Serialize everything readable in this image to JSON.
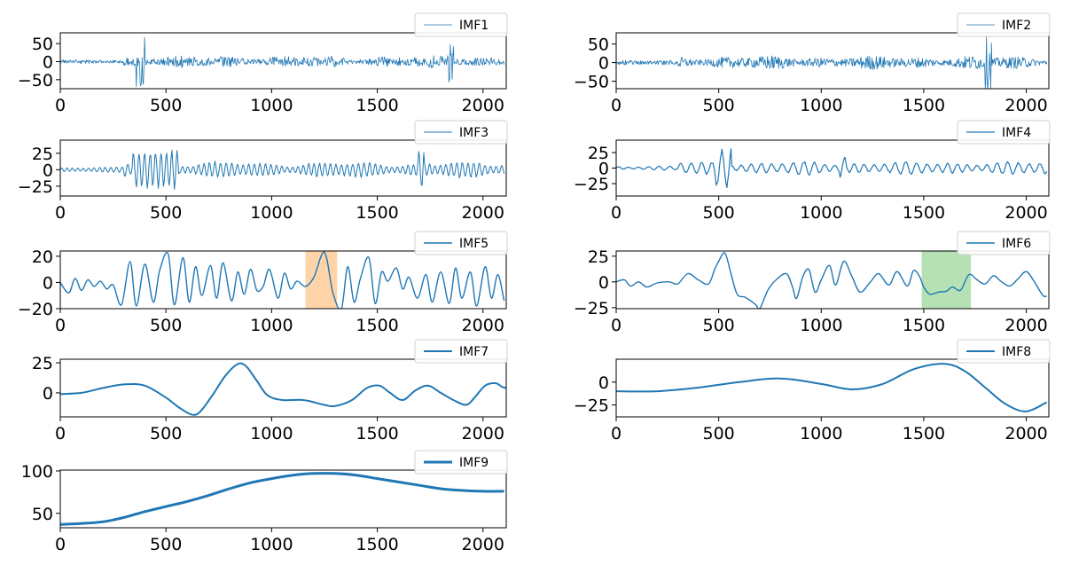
{
  "figure": {
    "line_color": "#1f77b4",
    "highlight_colors": {
      "orange": "#ffcc99",
      "green": "#a8dca8"
    }
  },
  "chart_data": [
    {
      "type": "line",
      "panel": "IMF1",
      "legend_label": "IMF1",
      "signal": "noise",
      "amplitude": 18,
      "bursts": [
        [
          360,
          400,
          70
        ],
        [
          1830,
          1860,
          70
        ]
      ],
      "xlim": [
        0,
        2110
      ],
      "x_ticks": [
        0,
        500,
        1000,
        1500,
        2000
      ],
      "ylim": [
        -75,
        80
      ],
      "y_ticks": [
        50,
        0,
        -50
      ],
      "grid": false,
      "legend_position": "top-right"
    },
    {
      "type": "line",
      "panel": "IMF2",
      "legend_label": "IMF2",
      "signal": "noise",
      "amplitude": 20,
      "bursts": [
        [
          1800,
          1830,
          70
        ]
      ],
      "xlim": [
        0,
        2110
      ],
      "x_ticks": [
        0,
        500,
        1000,
        1500,
        2000
      ],
      "ylim": [
        -70,
        80
      ],
      "y_ticks": [
        50,
        0,
        -50
      ],
      "grid": false,
      "legend_position": "top-right"
    },
    {
      "type": "line",
      "panel": "IMF3",
      "legend_label": "IMF3",
      "signal": "oscillation",
      "period": 26,
      "amplitude": 14,
      "bursts": [
        [
          340,
          560,
          30
        ],
        [
          1690,
          1720,
          32
        ]
      ],
      "xlim": [
        0,
        2110
      ],
      "x_ticks": [
        0,
        500,
        1000,
        1500,
        2000
      ],
      "ylim": [
        -40,
        45
      ],
      "y_ticks": [
        25,
        0,
        -25
      ],
      "grid": false,
      "legend_position": "top-right"
    },
    {
      "type": "line",
      "panel": "IMF4",
      "legend_label": "IMF4",
      "signal": "oscillation",
      "period": 50,
      "amplitude": 12,
      "bursts": [
        [
          480,
          560,
          34
        ],
        [
          1090,
          1120,
          20
        ]
      ],
      "xlim": [
        0,
        2110
      ],
      "x_ticks": [
        0,
        500,
        1000,
        1500,
        2000
      ],
      "ylim": [
        -45,
        45
      ],
      "y_ticks": [
        25,
        0,
        -25
      ],
      "grid": false,
      "legend_position": "top-right"
    },
    {
      "type": "line",
      "panel": "IMF5",
      "legend_label": "IMF5",
      "x": [
        0,
        40,
        70,
        100,
        130,
        160,
        190,
        220,
        250,
        290,
        330,
        360,
        400,
        440,
        470,
        510,
        540,
        580,
        610,
        640,
        670,
        710,
        740,
        770,
        810,
        840,
        870,
        900,
        930,
        960,
        990,
        1030,
        1060,
        1090,
        1120,
        1160,
        1200,
        1250,
        1290,
        1330,
        1360,
        1390,
        1420,
        1460,
        1490,
        1520,
        1550,
        1590,
        1620,
        1650,
        1690,
        1730,
        1760,
        1800,
        1840,
        1870,
        1900,
        1940,
        1970,
        2010,
        2040,
        2070,
        2100
      ],
      "y": [
        0,
        -8,
        3,
        -6,
        2,
        -3,
        1,
        -5,
        -2,
        -17,
        16,
        -18,
        14,
        -15,
        9,
        22,
        -17,
        19,
        -15,
        12,
        -10,
        13,
        -12,
        15,
        -14,
        8,
        -9,
        10,
        -6,
        -3,
        10,
        -12,
        7,
        -5,
        1,
        -3,
        4,
        23,
        -8,
        -20,
        12,
        -15,
        3,
        19,
        -16,
        8,
        1,
        11,
        -5,
        4,
        -12,
        6,
        -15,
        8,
        -16,
        11,
        -12,
        8,
        -18,
        12,
        -12,
        6,
        -14
      ],
      "xlim": [
        0,
        2110
      ],
      "x_ticks": [
        0,
        500,
        1000,
        1500,
        2000
      ],
      "ylim": [
        -20,
        24
      ],
      "y_ticks": [
        20,
        0,
        -20
      ],
      "highlight_span": [
        1160,
        1310
      ],
      "highlight_color": "orange",
      "grid": false,
      "legend_position": "top-right"
    },
    {
      "type": "line",
      "panel": "IMF6",
      "legend_label": "IMF6",
      "x": [
        0,
        40,
        70,
        110,
        150,
        200,
        260,
        300,
        350,
        400,
        450,
        480,
        500,
        530,
        560,
        590,
        630,
        680,
        700,
        740,
        780,
        830,
        860,
        880,
        910,
        940,
        970,
        1000,
        1040,
        1070,
        1110,
        1150,
        1190,
        1240,
        1280,
        1330,
        1370,
        1420,
        1450,
        1480,
        1500,
        1530,
        1570,
        1610,
        1640,
        1680,
        1720,
        1760,
        1800,
        1840,
        1880,
        1920,
        1960,
        2000,
        2040,
        2080,
        2100
      ],
      "y": [
        0,
        2,
        -4,
        0,
        -5,
        -1,
        0,
        -2,
        8,
        2,
        -2,
        12,
        20,
        28,
        8,
        -12,
        -15,
        -22,
        -26,
        -8,
        2,
        8,
        -5,
        -16,
        5,
        12,
        -10,
        2,
        16,
        -3,
        20,
        5,
        -10,
        0,
        8,
        -3,
        10,
        -4,
        11,
        5,
        -5,
        -12,
        -10,
        -9,
        -5,
        -8,
        7,
        2,
        -2,
        6,
        0,
        -4,
        3,
        10,
        0,
        -13,
        -14
      ],
      "xlim": [
        0,
        2110
      ],
      "x_ticks": [
        0,
        500,
        1000,
        1500,
        2000
      ],
      "ylim": [
        -26,
        30
      ],
      "y_ticks": [
        25,
        0,
        -25
      ],
      "highlight_span": [
        1490,
        1730
      ],
      "highlight_color": "green",
      "grid": false,
      "legend_position": "top-right"
    },
    {
      "type": "line",
      "panel": "IMF7",
      "legend_label": "IMF7",
      "x": [
        0,
        100,
        200,
        300,
        400,
        500,
        560,
        620,
        660,
        720,
        780,
        840,
        880,
        930,
        980,
        1050,
        1150,
        1250,
        1300,
        1380,
        1450,
        1510,
        1560,
        1620,
        1680,
        1740,
        1800,
        1860,
        1920,
        1960,
        2010,
        2060,
        2090,
        2110
      ],
      "y": [
        -1,
        0,
        4,
        7,
        6,
        -4,
        -12,
        -18,
        -16,
        -2,
        14,
        24,
        22,
        10,
        -2,
        -6,
        -6,
        -10,
        -11,
        -6,
        4,
        6,
        0,
        -6,
        2,
        6,
        0,
        -6,
        -10,
        -4,
        6,
        8,
        5,
        4
      ],
      "xlim": [
        0,
        2110
      ],
      "x_ticks": [
        0,
        500,
        1000,
        1500,
        2000
      ],
      "ylim": [
        -20,
        28
      ],
      "y_ticks": [
        25,
        0
      ],
      "grid": false,
      "legend_position": "top-right"
    },
    {
      "type": "line",
      "panel": "IMF8",
      "legend_label": "IMF8",
      "x": [
        0,
        200,
        400,
        600,
        800,
        1000,
        1150,
        1300,
        1450,
        1600,
        1700,
        1800,
        1900,
        2000,
        2100
      ],
      "y": [
        -10,
        -10,
        -6,
        0,
        4,
        -2,
        -8,
        -2,
        14,
        20,
        12,
        -6,
        -24,
        -32,
        -22
      ],
      "xlim": [
        0,
        2110
      ],
      "x_ticks": [
        0,
        500,
        1000,
        1500,
        2000
      ],
      "ylim": [
        -38,
        25
      ],
      "y_ticks": [
        0,
        -25
      ],
      "grid": false,
      "legend_position": "top-right"
    },
    {
      "type": "line",
      "panel": "IMF9",
      "legend_label": "IMF9",
      "x": [
        0,
        100,
        200,
        300,
        400,
        500,
        600,
        700,
        800,
        900,
        1000,
        1100,
        1200,
        1300,
        1400,
        1500,
        1600,
        1700,
        1800,
        1900,
        2000,
        2100
      ],
      "y": [
        37,
        38,
        40,
        45,
        52,
        58,
        64,
        71,
        79,
        86,
        91,
        95,
        97,
        97,
        95,
        91,
        87,
        83,
        79,
        77,
        76,
        76
      ],
      "xlim": [
        0,
        2110
      ],
      "x_ticks": [
        0,
        500,
        1000,
        1500,
        2000
      ],
      "ylim": [
        33,
        101
      ],
      "y_ticks": [
        100,
        50
      ],
      "grid": false,
      "legend_position": "top-right"
    }
  ]
}
